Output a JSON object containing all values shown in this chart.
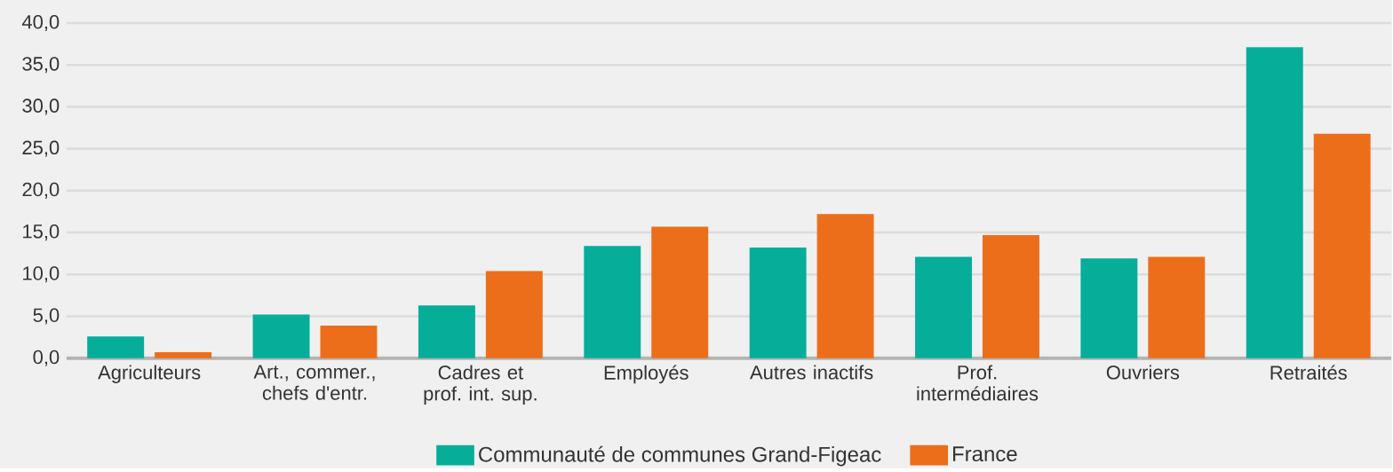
{
  "chart_data": {
    "type": "bar",
    "categories": [
      "Agriculteurs",
      "Art., commer., chefs d'entr.",
      "Cadres et prof. int. sup.",
      "Employés",
      "Autres inactifs",
      "Prof. intermédiaires",
      "Ouvriers",
      "Retraités"
    ],
    "series": [
      {
        "name": "Communauté de communes Grand-Figeac",
        "color": "#06ae9a",
        "values": [
          2.6,
          5.2,
          6.3,
          13.4,
          13.2,
          12.1,
          11.9,
          37.1
        ]
      },
      {
        "name": "France",
        "color": "#ed6e1a",
        "values": [
          0.7,
          3.9,
          10.4,
          15.7,
          17.2,
          14.7,
          12.1,
          26.8
        ]
      }
    ],
    "ylim": [
      0,
      40
    ],
    "yticks": [
      {
        "value": 0,
        "label": "0,0"
      },
      {
        "value": 5,
        "label": "5,0"
      },
      {
        "value": 10,
        "label": "10,0"
      },
      {
        "value": 15,
        "label": "15,0"
      },
      {
        "value": 20,
        "label": "20,0"
      },
      {
        "value": 25,
        "label": "25,0"
      },
      {
        "value": 30,
        "label": "30,0"
      },
      {
        "value": 35,
        "label": "35,0"
      },
      {
        "value": 40,
        "label": "40,0"
      }
    ],
    "grid": "y",
    "legend": "bottom"
  }
}
